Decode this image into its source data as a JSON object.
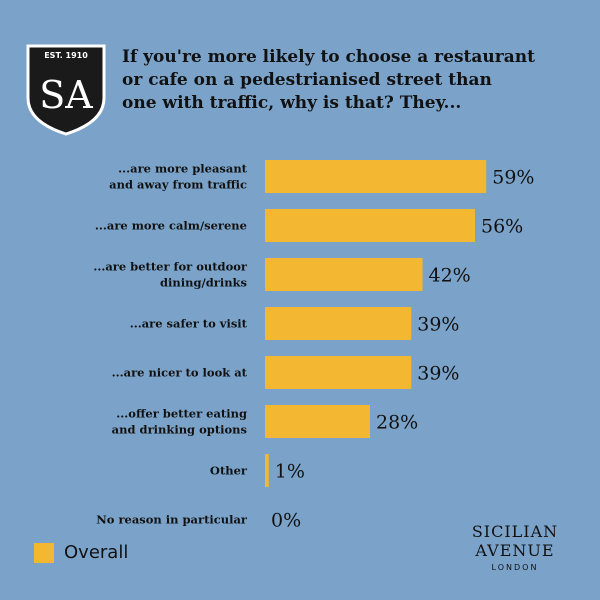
{
  "logo": {
    "est_text": "EST. 1910",
    "mark": "SA",
    "colors": {
      "shield": "#1a1a1a",
      "border": "#ffffff"
    }
  },
  "title": "If you're more likely to choose a restaurant\nor cafe on a pedestrianised street than\none with traffic, why is that? They...",
  "legend": {
    "label": "Overall"
  },
  "brand": {
    "line1": "SICILIAN",
    "line2": "AVENUE",
    "city": "LONDON"
  },
  "colors": {
    "background": "#7ba3c9",
    "bar": "#f4b731",
    "text": "#111111"
  },
  "chart_data": {
    "type": "bar",
    "orientation": "horizontal",
    "categories": [
      "...are more pleasant\nand away from traffic",
      "...are more calm/serene",
      "...are better for outdoor\ndining/drinks",
      "...are safer to visit",
      "...are nicer to look at",
      "...offer better eating\nand drinking options",
      "Other",
      "No reason in particular"
    ],
    "series": [
      {
        "name": "Overall",
        "values": [
          59,
          56,
          42,
          39,
          39,
          28,
          1,
          0
        ]
      }
    ],
    "value_labels": [
      "59%",
      "56%",
      "42%",
      "39%",
      "39%",
      "28%",
      "1%",
      "0%"
    ],
    "xlim": [
      0,
      100
    ],
    "grid": false,
    "legend_position": "bottom-left"
  }
}
